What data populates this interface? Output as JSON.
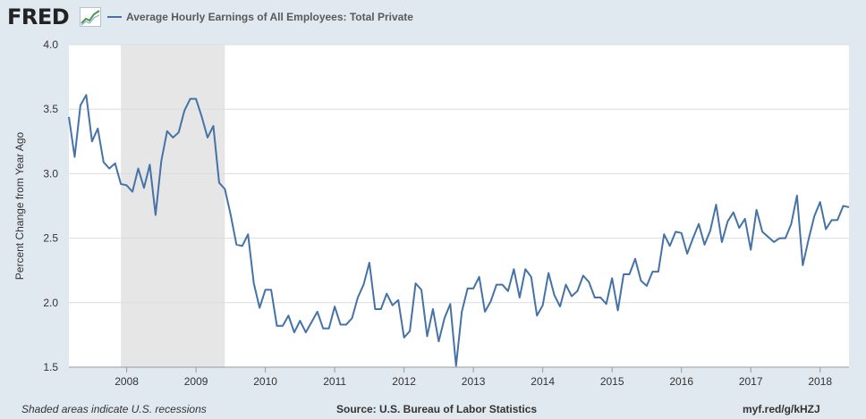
{
  "logo": {
    "text": "FRED"
  },
  "legend": {
    "label": "Average Hourly Earnings of All Employees: Total Private",
    "color": "#4572a7"
  },
  "footer": {
    "recession_note": "Shaded areas indicate U.S. recessions",
    "source": "Source: U.S. Bureau of Labor Statistics",
    "short_url": "myf.red/g/kHZJ"
  },
  "colors": {
    "background": "#e1e9f0",
    "plot_background": "#ffffff",
    "gridline": "#d9dde2",
    "recession_shade": "#e6e6e6",
    "series_line": "#4572a7",
    "text": "#333333"
  },
  "chart_data": {
    "type": "line",
    "title": "Average Hourly Earnings of All Employees: Total Private",
    "xlabel": "",
    "ylabel": "Percent Change from Year Ago",
    "ylim": [
      1.5,
      4.0
    ],
    "xlim": [
      "2007-03",
      "2018-06"
    ],
    "yticks": [
      "1.5",
      "2.0",
      "2.5",
      "3.0",
      "3.5",
      "4.0"
    ],
    "xticks": [
      "2008",
      "2009",
      "2010",
      "2011",
      "2012",
      "2013",
      "2014",
      "2015",
      "2016",
      "2017",
      "2018"
    ],
    "grid": true,
    "legend_position": "top-left",
    "recessions": [
      {
        "start": "2007-12",
        "end": "2009-06"
      }
    ],
    "series": [
      {
        "name": "Average Hourly Earnings of All Employees: Total Private",
        "start": "2007-03",
        "frequency": "monthly",
        "values": [
          3.44,
          3.13,
          3.53,
          3.61,
          3.25,
          3.35,
          3.09,
          3.04,
          3.08,
          2.92,
          2.91,
          2.86,
          3.04,
          2.89,
          3.07,
          2.68,
          3.1,
          3.33,
          3.28,
          3.32,
          3.49,
          3.58,
          3.58,
          3.44,
          3.28,
          3.37,
          2.93,
          2.88,
          2.68,
          2.45,
          2.44,
          2.53,
          2.15,
          1.96,
          2.1,
          2.1,
          1.82,
          1.82,
          1.9,
          1.77,
          1.86,
          1.77,
          1.85,
          1.93,
          1.8,
          1.8,
          1.97,
          1.83,
          1.83,
          1.88,
          2.04,
          2.14,
          2.31,
          1.95,
          1.95,
          2.07,
          1.98,
          2.02,
          1.73,
          1.78,
          2.15,
          2.1,
          1.74,
          1.95,
          1.7,
          1.88,
          1.99,
          1.51,
          1.93,
          2.11,
          2.11,
          2.2,
          1.93,
          2.01,
          2.14,
          2.14,
          2.09,
          2.26,
          2.04,
          2.26,
          2.2,
          1.9,
          1.98,
          2.23,
          2.06,
          1.97,
          2.14,
          2.05,
          2.09,
          2.21,
          2.16,
          2.04,
          2.04,
          1.99,
          2.19,
          1.94,
          2.22,
          2.22,
          2.34,
          2.17,
          2.13,
          2.24,
          2.24,
          2.53,
          2.44,
          2.55,
          2.54,
          2.38,
          2.5,
          2.61,
          2.45,
          2.56,
          2.76,
          2.47,
          2.63,
          2.7,
          2.58,
          2.65,
          2.41,
          2.72,
          2.55,
          2.51,
          2.47,
          2.5,
          2.5,
          2.61,
          2.83,
          2.29,
          2.49,
          2.67,
          2.78,
          2.57,
          2.64,
          2.64,
          2.75,
          2.74
        ]
      }
    ]
  }
}
